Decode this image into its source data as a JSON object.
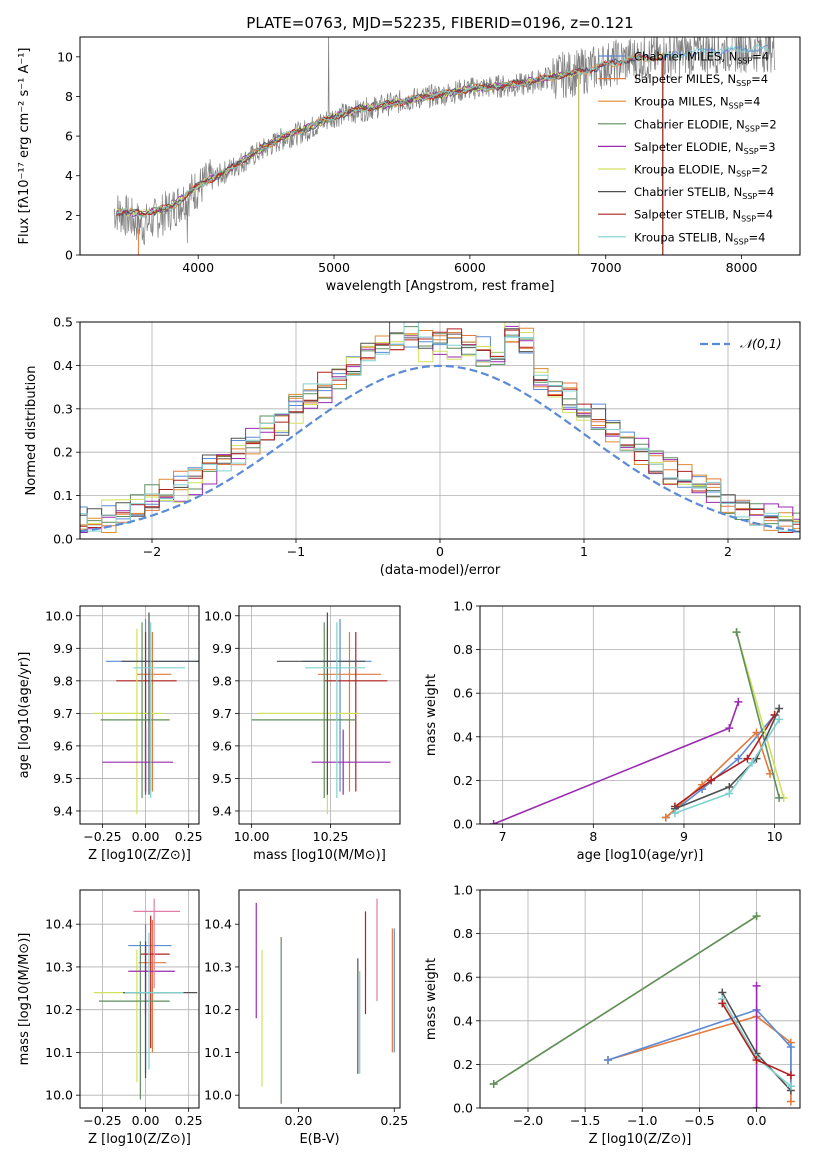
{
  "chart_data": [
    {
      "id": "spectrum",
      "type": "line",
      "title": "PLATE=0763, MJD=52235, FIBERID=0196, z=0.121",
      "xlabel": "wavelength [Angstrom, rest frame]",
      "ylabel": "Flux [fλ10⁻¹⁷ erg cm⁻² s⁻¹ A⁻¹]",
      "xlim": [
        3130,
        8430
      ],
      "ylim": [
        0,
        11
      ],
      "xticks": [
        4000,
        5000,
        6000,
        7000,
        8000
      ],
      "yticks": [
        0,
        2,
        4,
        6,
        8,
        10
      ],
      "grid": false,
      "legend_position": "top-right",
      "data_trace": {
        "color": "#808080",
        "x": [
          3400,
          3600,
          3800,
          4000,
          4200,
          4400,
          4600,
          4800,
          5000,
          5200,
          5400,
          5600,
          5800,
          6000,
          6200,
          6400,
          6600,
          6800,
          7000,
          7200,
          7400,
          7600,
          7800,
          8000,
          8200
        ],
        "y": [
          2.2,
          1.5,
          2.3,
          3.4,
          4.2,
          5.0,
          5.8,
          6.3,
          7.0,
          7.3,
          7.6,
          7.9,
          8.1,
          8.4,
          8.5,
          8.6,
          9.0,
          9.2,
          9.6,
          9.9,
          10.0,
          10.2,
          10.3,
          10.4,
          10.4
        ]
      },
      "series": [
        {
          "name": "Chabrier MILES, N_SSP=4",
          "color": "#5a8bd6",
          "end": 8200
        },
        {
          "name": "Salpeter MILES, N_SSP=4",
          "color": "#e37a3c",
          "end": 7420
        },
        {
          "name": "Kroupa MILES, N_SSP=4",
          "color": "#e08a32",
          "end": 7420
        },
        {
          "name": "Chabrier ELODIE, N_SSP=2",
          "color": "#5e8e5e",
          "end": 6800
        },
        {
          "name": "Salpeter ELODIE, N_SSP=3",
          "color": "#9a2bb0",
          "end": 6800
        },
        {
          "name": "Kroupa ELODIE, N_SSP=2",
          "color": "#d3e05c",
          "end": 6800
        },
        {
          "name": "Chabrier STELIB, N_SSP=4",
          "color": "#505050",
          "end": 7420
        },
        {
          "name": "Salpeter STELIB, N_SSP=4",
          "color": "#b22020",
          "end": 7420
        },
        {
          "name": "Kroupa STELIB, N_SSP=4",
          "color": "#7fd0d0",
          "end": 8200
        }
      ],
      "model_x": [
        3400,
        3600,
        3800,
        4000,
        4200,
        4400,
        4600,
        4800,
        5000,
        5200,
        5400,
        5600,
        5800,
        6000,
        6200,
        6400,
        6600,
        6800,
        7000,
        7200,
        7400,
        7600,
        7800,
        8000,
        8200
      ],
      "model_y": [
        2.2,
        2.1,
        2.4,
        3.5,
        4.2,
        5.1,
        5.9,
        6.4,
        7.0,
        7.4,
        7.6,
        7.9,
        8.1,
        8.4,
        8.5,
        8.7,
        9.0,
        9.2,
        9.6,
        9.9,
        10.0,
        10.2,
        10.3,
        10.4,
        10.4
      ]
    },
    {
      "id": "residuals",
      "type": "area",
      "xlabel": "(data-model)/error",
      "ylabel": "Normed distribution",
      "xlim": [
        -2.5,
        2.5
      ],
      "ylim": [
        0,
        0.5
      ],
      "xticks": [
        -2,
        -1,
        0,
        1,
        2
      ],
      "yticks": [
        0.0,
        0.1,
        0.2,
        0.3,
        0.4,
        0.5
      ],
      "grid": true,
      "legend_position": "top-right",
      "reference": {
        "name": "𝒩(0,1)",
        "color": "#5b8ad6",
        "mu": 0,
        "sigma": 1
      },
      "bin_width": 0.1
    },
    {
      "id": "age-vs-Z",
      "type": "scatter",
      "xlabel": "Z [log10(Z/Z⊙)]",
      "ylabel": "age  [log10(age/yr)]",
      "xlim": [
        -0.38,
        0.31
      ],
      "ylim": [
        9.36,
        10.03
      ],
      "xticks": [
        -0.25,
        0.0,
        0.25
      ],
      "yticks": [
        9.4,
        9.5,
        9.6,
        9.7,
        9.8,
        9.9,
        10.0
      ],
      "grid": true,
      "points": [
        {
          "x": 0.0,
          "y": 9.86,
          "xerr": [
            0.23,
            0.35
          ],
          "yerr": [
            0.4,
            0.13
          ],
          "color": "#5b8ad6"
        },
        {
          "x": 0.04,
          "y": 9.82,
          "xerr": [
            0.09,
            0.11
          ],
          "yerr": [
            0.36,
            0.13
          ],
          "color": "#e37a3c"
        },
        {
          "x": 0.0,
          "y": 9.8,
          "xerr": [
            0.17,
            0.18
          ],
          "yerr": [
            0.34,
            0.15
          ],
          "color": "#b22020"
        },
        {
          "x": -0.05,
          "y": 9.7,
          "xerr": [
            0.25,
            0.15
          ],
          "yerr": [
            0.31,
            0.26
          ],
          "color": "#d3e05c"
        },
        {
          "x": -0.02,
          "y": 9.68,
          "xerr": [
            0.24,
            0.16
          ],
          "yerr": [
            0.24,
            0.3
          ],
          "color": "#5e8e5e"
        },
        {
          "x": 0.0,
          "y": 9.55,
          "xerr": [
            0.25,
            0.16
          ],
          "yerr": [
            0.1,
            0.1
          ],
          "color": "#9a2bb0"
        },
        {
          "x": 0.02,
          "y": 9.86,
          "xerr": [
            0.16,
            0.3
          ],
          "yerr": [
            0.41,
            0.15
          ],
          "color": "#505050"
        },
        {
          "x": 0.03,
          "y": 9.84,
          "xerr": [
            0.1,
            0.2
          ],
          "yerr": [
            0.4,
            0.14
          ],
          "color": "#7fd0d0"
        }
      ]
    },
    {
      "id": "age-vs-mass",
      "type": "scatter",
      "xlabel": "mass [log10(M/M⊙)]",
      "ylabel": "",
      "xlim": [
        9.96,
        10.47
      ],
      "ylim": [
        9.36,
        10.03
      ],
      "xticks": [
        10.0,
        10.25
      ],
      "yticks": [
        9.4,
        9.5,
        9.6,
        9.7,
        9.8,
        9.9,
        10.0
      ],
      "grid": true,
      "points": [
        {
          "x": 10.28,
          "y": 9.86,
          "xerr": [
            0.12,
            0.1
          ],
          "yerr": [
            0.4,
            0.13
          ],
          "color": "#5b8ad6"
        },
        {
          "x": 10.31,
          "y": 9.82,
          "xerr": [
            0.1,
            0.1
          ],
          "yerr": [
            0.36,
            0.13
          ],
          "color": "#e37a3c"
        },
        {
          "x": 10.33,
          "y": 9.8,
          "xerr": [
            0.1,
            0.1
          ],
          "yerr": [
            0.34,
            0.15
          ],
          "color": "#b22020"
        },
        {
          "x": 10.24,
          "y": 9.7,
          "xerr": [
            0.22,
            0.1
          ],
          "yerr": [
            0.31,
            0.26
          ],
          "color": "#d3e05c"
        },
        {
          "x": 10.23,
          "y": 9.68,
          "xerr": [
            0.23,
            0.1
          ],
          "yerr": [
            0.24,
            0.3
          ],
          "color": "#5e8e5e"
        },
        {
          "x": 10.29,
          "y": 9.55,
          "xerr": [
            0.1,
            0.15
          ],
          "yerr": [
            0.1,
            0.1
          ],
          "color": "#9a2bb0"
        },
        {
          "x": 10.24,
          "y": 9.86,
          "xerr": [
            0.16,
            0.12
          ],
          "yerr": [
            0.41,
            0.15
          ],
          "color": "#505050"
        },
        {
          "x": 10.27,
          "y": 9.84,
          "xerr": [
            0.1,
            0.09
          ],
          "yerr": [
            0.4,
            0.14
          ],
          "color": "#7fd0d0"
        }
      ]
    },
    {
      "id": "weight-vs-age",
      "type": "line",
      "xlabel": "age  [log10(age/yr)]",
      "ylabel": "mass weight",
      "xlim": [
        6.75,
        10.28
      ],
      "ylim": [
        0.0,
        1.0
      ],
      "xticks": [
        7,
        8,
        9,
        10
      ],
      "yticks": [
        0.0,
        0.2,
        0.4,
        0.6,
        0.8,
        1.0
      ],
      "grid": true,
      "series": [
        {
          "color": "#5b8ad6",
          "x": [
            8.8,
            9.2,
            9.6,
            10.0
          ],
          "y": [
            0.03,
            0.16,
            0.3,
            0.5
          ]
        },
        {
          "color": "#e37a3c",
          "x": [
            8.8,
            9.2,
            9.8,
            9.95
          ],
          "y": [
            0.03,
            0.18,
            0.42,
            0.23
          ]
        },
        {
          "color": "#b22020",
          "x": [
            8.9,
            9.3,
            9.7,
            10.0
          ],
          "y": [
            0.08,
            0.2,
            0.3,
            0.5
          ]
        },
        {
          "color": "#d3e05c",
          "x": [
            9.58,
            10.1
          ],
          "y": [
            0.88,
            0.12
          ]
        },
        {
          "color": "#5e8e5e",
          "x": [
            9.58,
            10.05
          ],
          "y": [
            0.88,
            0.12
          ]
        },
        {
          "color": "#9a2bb0",
          "x": [
            6.9,
            9.5,
            9.6
          ],
          "y": [
            0.0,
            0.44,
            0.56
          ]
        },
        {
          "color": "#505050",
          "x": [
            8.9,
            9.5,
            9.8,
            10.05
          ],
          "y": [
            0.07,
            0.17,
            0.3,
            0.53
          ]
        },
        {
          "color": "#7fd0d0",
          "x": [
            8.9,
            9.5,
            9.75,
            10.05
          ],
          "y": [
            0.05,
            0.14,
            0.28,
            0.48
          ]
        }
      ]
    },
    {
      "id": "mass-vs-Z",
      "type": "scatter",
      "xlabel": "Z [log10(Z/Z⊙)]",
      "ylabel": "mass [log10(M/M⊙)]",
      "xlim": [
        -0.38,
        0.31
      ],
      "ylim": [
        9.97,
        10.48
      ],
      "xticks": [
        -0.25,
        0.0,
        0.25
      ],
      "yticks": [
        10.0,
        10.1,
        10.2,
        10.3,
        10.4
      ],
      "grid": true,
      "points": [
        {
          "x": 0.0,
          "y": 10.35,
          "xerr": [
            0.1,
            0.15
          ],
          "yerr": [
            0.3,
            0.05
          ],
          "color": "#5b8ad6"
        },
        {
          "x": 0.04,
          "y": 10.31,
          "xerr": [
            0.08,
            0.08
          ],
          "yerr": [
            0.21,
            0.1
          ],
          "color": "#e37a3c"
        },
        {
          "x": 0.03,
          "y": 10.33,
          "xerr": [
            0.06,
            0.11
          ],
          "yerr": [
            0.22,
            0.09
          ],
          "color": "#b22020"
        },
        {
          "x": -0.05,
          "y": 10.24,
          "xerr": [
            0.25,
            0.2
          ],
          "yerr": [
            0.21,
            0.1
          ],
          "color": "#d3e05c"
        },
        {
          "x": -0.03,
          "y": 10.22,
          "xerr": [
            0.24,
            0.17
          ],
          "yerr": [
            0.23,
            0.14
          ],
          "color": "#5e8e5e"
        },
        {
          "x": 0.0,
          "y": 10.29,
          "xerr": [
            0.1,
            0.17
          ],
          "yerr": [
            0.1,
            0.06
          ],
          "color": "#9a2bb0"
        },
        {
          "x": 0.0,
          "y": 10.24,
          "xerr": [
            0.13,
            0.3
          ],
          "yerr": [
            0.2,
            0.12
          ],
          "color": "#505050"
        },
        {
          "x": 0.02,
          "y": 10.24,
          "xerr": [
            0.14,
            0.2
          ],
          "yerr": [
            0.18,
            0.14
          ],
          "color": "#7fd0d0"
        },
        {
          "x": 0.05,
          "y": 10.43,
          "xerr": [
            0.12,
            0.15
          ],
          "yerr": [
            0.18,
            0.03
          ],
          "color": "#e07fa6"
        }
      ]
    },
    {
      "id": "mass-vs-EBV",
      "type": "scatter",
      "xlabel": "E(B-V)",
      "ylabel": "",
      "xlim": [
        0.169,
        0.253
      ],
      "ylim": [
        9.97,
        10.48
      ],
      "xticks": [
        0.2,
        0.25
      ],
      "yticks": [
        10.0,
        10.1,
        10.2,
        10.3,
        10.4
      ],
      "grid": false,
      "points": [
        {
          "x": 0.178,
          "y": 10.31,
          "yerr": [
            0.13,
            0.14
          ],
          "color": "#9a2bb0"
        },
        {
          "x": 0.181,
          "y": 10.18,
          "yerr": [
            0.16,
            0.16
          ],
          "color": "#d3e05c"
        },
        {
          "x": 0.191,
          "y": 10.17,
          "yerr": [
            0.19,
            0.2
          ],
          "color": "#5e8e5e"
        },
        {
          "x": 0.231,
          "y": 10.19,
          "yerr": [
            0.14,
            0.13
          ],
          "color": "#505050"
        },
        {
          "x": 0.232,
          "y": 10.17,
          "yerr": [
            0.12,
            0.12
          ],
          "color": "#7fd0d0"
        },
        {
          "x": 0.235,
          "y": 10.31,
          "yerr": [
            0.12,
            0.12
          ],
          "color": "#b22020"
        },
        {
          "x": 0.241,
          "y": 10.34,
          "yerr": [
            0.12,
            0.12
          ],
          "color": "#e07fa6"
        },
        {
          "x": 0.249,
          "y": 10.25,
          "yerr": [
            0.15,
            0.14
          ],
          "color": "#e37a3c"
        },
        {
          "x": 0.25,
          "y": 10.25,
          "yerr": [
            0.15,
            0.14
          ],
          "color": "#5b8ad6"
        }
      ]
    },
    {
      "id": "weight-vs-Z",
      "type": "line",
      "xlabel": "Z [log10(Z/Z⊙)]",
      "ylabel": "mass weight",
      "xlim": [
        -2.42,
        0.38
      ],
      "ylim": [
        0.0,
        1.0
      ],
      "xticks": [
        -2.0,
        -1.5,
        -1.0,
        -0.5,
        0.0
      ],
      "yticks": [
        0.0,
        0.2,
        0.4,
        0.6,
        0.8,
        1.0
      ],
      "grid": true,
      "series": [
        {
          "color": "#d3e05c",
          "x": [
            -2.3,
            0.0
          ],
          "y": [
            0.11,
            0.88
          ]
        },
        {
          "color": "#5e8e5e",
          "x": [
            -2.3,
            0.0
          ],
          "y": [
            0.11,
            0.88
          ]
        },
        {
          "color": "#e37a3c",
          "x": [
            -1.3,
            0.0,
            0.3,
            0.3
          ],
          "y": [
            0.22,
            0.42,
            0.3,
            0.03
          ]
        },
        {
          "color": "#5b8ad6",
          "x": [
            -1.3,
            0.0,
            0.3,
            0.3
          ],
          "y": [
            0.22,
            0.45,
            0.28,
            0.1
          ]
        },
        {
          "color": "#9a2bb0",
          "x": [
            0.0,
            0.0
          ],
          "y": [
            0.56,
            0.0
          ]
        },
        {
          "color": "#505050",
          "x": [
            -0.3,
            0.0,
            0.3
          ],
          "y": [
            0.53,
            0.25,
            0.08
          ]
        },
        {
          "color": "#7fd0d0",
          "x": [
            -0.3,
            0.0,
            0.3
          ],
          "y": [
            0.5,
            0.23,
            0.1
          ]
        },
        {
          "color": "#b22020",
          "x": [
            -0.3,
            0.0,
            0.3
          ],
          "y": [
            0.48,
            0.22,
            0.15
          ]
        }
      ]
    }
  ]
}
